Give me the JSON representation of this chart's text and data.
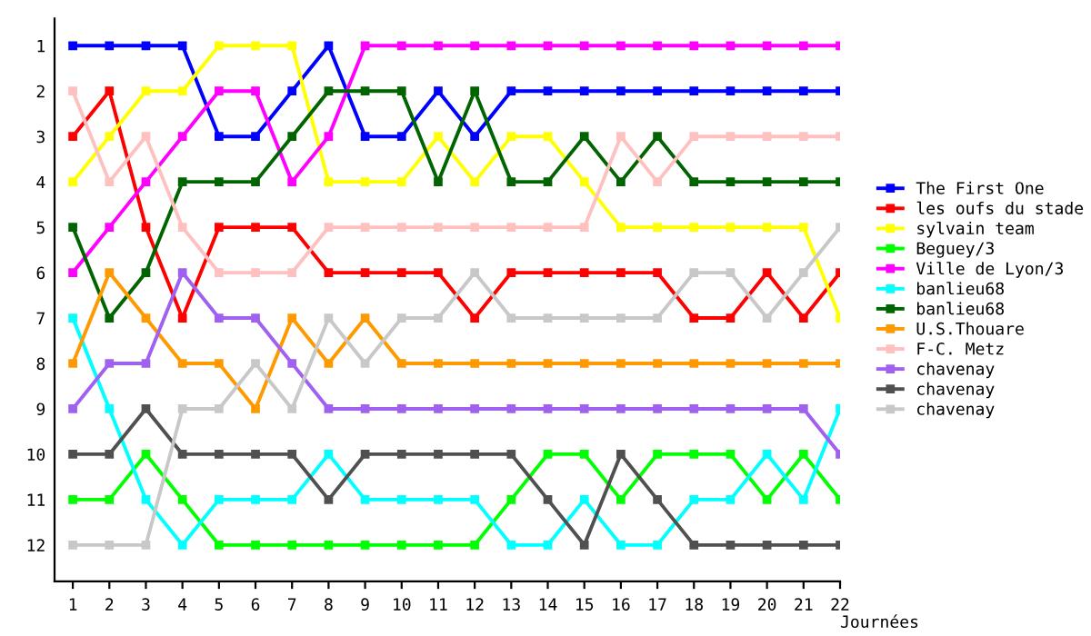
{
  "chart_data": {
    "type": "line",
    "xlabel": "Journées",
    "x": [
      1,
      2,
      3,
      4,
      5,
      6,
      7,
      8,
      9,
      10,
      11,
      12,
      13,
      14,
      15,
      16,
      17,
      18,
      19,
      20,
      21,
      22
    ],
    "xlim": [
      0.5,
      22
    ],
    "xticks": [
      1,
      2,
      3,
      4,
      5,
      6,
      7,
      8,
      9,
      10,
      11,
      12,
      13,
      14,
      15,
      16,
      17,
      18,
      19,
      20,
      21,
      22
    ],
    "ylim": [
      12.8,
      0.4
    ],
    "yticks": [
      1,
      2,
      3,
      4,
      5,
      6,
      7,
      8,
      9,
      10,
      11,
      12
    ],
    "grid": false,
    "legend": "right",
    "marker": "square",
    "line_style": "solid",
    "series": [
      {
        "name": "The First One",
        "color": "#0000ff",
        "values": [
          1,
          1,
          1,
          1,
          3,
          3,
          2,
          1,
          3,
          3,
          2,
          3,
          2,
          2,
          2,
          2,
          2,
          2,
          2,
          2,
          2,
          2
        ]
      },
      {
        "name": "les oufs du stade",
        "color": "#ff0000",
        "values": [
          3,
          2,
          5,
          7,
          5,
          5,
          5,
          6,
          6,
          6,
          6,
          7,
          6,
          6,
          6,
          6,
          6,
          7,
          7,
          6,
          7,
          6
        ]
      },
      {
        "name": "sylvain team",
        "color": "#ffff00",
        "values": [
          4,
          3,
          2,
          2,
          1,
          1,
          1,
          4,
          4,
          4,
          3,
          4,
          3,
          3,
          4,
          5,
          5,
          5,
          5,
          5,
          5,
          7
        ]
      },
      {
        "name": "Beguey/3",
        "color": "#00ff00",
        "values": [
          11,
          11,
          10,
          11,
          12,
          12,
          12,
          12,
          12,
          12,
          12,
          12,
          11,
          10,
          10,
          11,
          10,
          10,
          10,
          11,
          10,
          11
        ]
      },
      {
        "name": "Ville de Lyon/3",
        "color": "#ff00ff",
        "values": [
          6,
          5,
          4,
          3,
          2,
          2,
          4,
          3,
          1,
          1,
          1,
          1,
          1,
          1,
          1,
          1,
          1,
          1,
          1,
          1,
          1,
          1
        ]
      },
      {
        "name": "banlieu68",
        "color": "#00ffff",
        "values": [
          7,
          9,
          11,
          12,
          11,
          11,
          11,
          10,
          11,
          11,
          11,
          11,
          12,
          12,
          11,
          12,
          12,
          11,
          11,
          10,
          11,
          9
        ]
      },
      {
        "name": "banlieu68",
        "color": "#006400",
        "values": [
          5,
          7,
          6,
          4,
          4,
          4,
          3,
          2,
          2,
          2,
          4,
          2,
          4,
          4,
          3,
          4,
          3,
          4,
          4,
          4,
          4,
          4
        ]
      },
      {
        "name": "U.S.Thouare",
        "color": "#ff9900",
        "values": [
          8,
          6,
          7,
          8,
          8,
          9,
          7,
          8,
          7,
          8,
          8,
          8,
          8,
          8,
          8,
          8,
          8,
          8,
          8,
          8,
          8,
          8
        ]
      },
      {
        "name": "F-C. Metz",
        "color": "#ffc0c0",
        "values": [
          2,
          4,
          3,
          5,
          6,
          6,
          6,
          5,
          5,
          5,
          5,
          5,
          5,
          5,
          5,
          3,
          4,
          3,
          3,
          3,
          3,
          3
        ]
      },
      {
        "name": "chavenay",
        "color": "#a060f0",
        "values": [
          9,
          8,
          8,
          6,
          7,
          7,
          8,
          9,
          9,
          9,
          9,
          9,
          9,
          9,
          9,
          9,
          9,
          9,
          9,
          9,
          9,
          10
        ]
      },
      {
        "name": "chavenay",
        "color": "#505050",
        "values": [
          10,
          10,
          9,
          10,
          10,
          10,
          10,
          11,
          10,
          10,
          10,
          10,
          10,
          11,
          12,
          10,
          11,
          12,
          12,
          12,
          12,
          12
        ]
      },
      {
        "name": "chavenay",
        "color": "#c8c8c8",
        "values": [
          12,
          12,
          12,
          9,
          9,
          8,
          9,
          7,
          8,
          7,
          7,
          6,
          7,
          7,
          7,
          7,
          7,
          6,
          6,
          7,
          6,
          5
        ]
      }
    ]
  }
}
